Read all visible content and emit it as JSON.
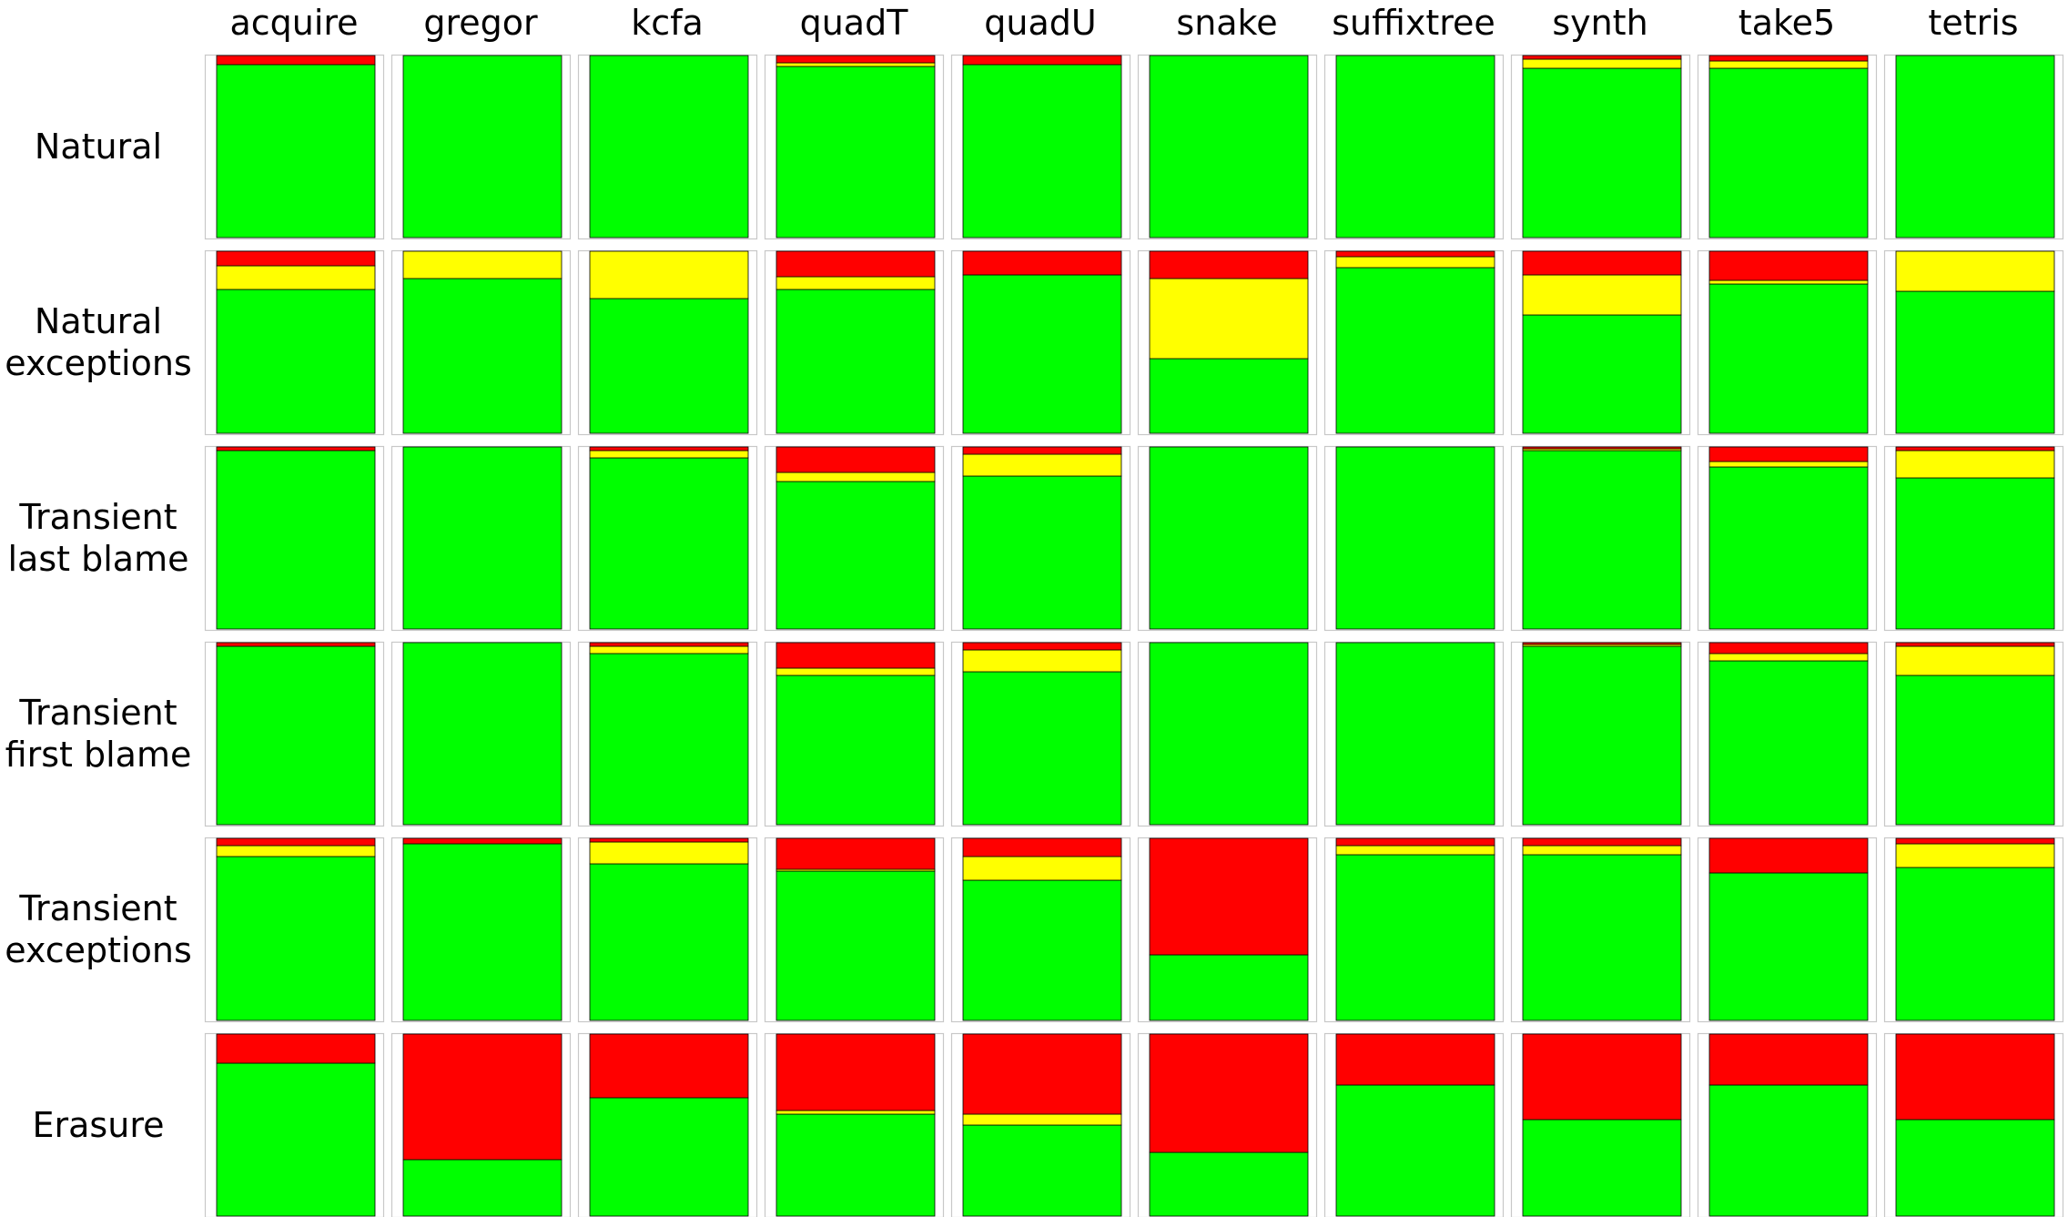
{
  "chart_data": {
    "type": "bar",
    "stacked": true,
    "normalized": true,
    "colors": {
      "green": "#00ff00",
      "yellow": "#ffff00",
      "red": "#ff0000"
    },
    "stack_order_bottom_to_top": [
      "green",
      "yellow",
      "red"
    ],
    "columns": [
      "acquire",
      "gregor",
      "kcfa",
      "quadT",
      "quadU",
      "snake",
      "suffixtree",
      "synth",
      "take5",
      "tetris"
    ],
    "rows": [
      {
        "label": [
          "Natural"
        ],
        "cells": [
          {
            "green": 0.95,
            "yellow": 0.0,
            "red": 0.05
          },
          {
            "green": 1.0,
            "yellow": 0.0,
            "red": 0.0
          },
          {
            "green": 1.0,
            "yellow": 0.0,
            "red": 0.0
          },
          {
            "green": 0.94,
            "yellow": 0.02,
            "red": 0.04
          },
          {
            "green": 0.95,
            "yellow": 0.0,
            "red": 0.05
          },
          {
            "green": 1.0,
            "yellow": 0.0,
            "red": 0.0
          },
          {
            "green": 1.0,
            "yellow": 0.0,
            "red": 0.0
          },
          {
            "green": 0.93,
            "yellow": 0.05,
            "red": 0.02
          },
          {
            "green": 0.93,
            "yellow": 0.04,
            "red": 0.03
          },
          {
            "green": 1.0,
            "yellow": 0.0,
            "red": 0.0
          }
        ]
      },
      {
        "label": [
          "Natural",
          "exceptions"
        ],
        "cells": [
          {
            "green": 0.79,
            "yellow": 0.13,
            "red": 0.08
          },
          {
            "green": 0.85,
            "yellow": 0.15,
            "red": 0.0
          },
          {
            "green": 0.74,
            "yellow": 0.26,
            "red": 0.0
          },
          {
            "green": 0.79,
            "yellow": 0.07,
            "red": 0.14
          },
          {
            "green": 0.87,
            "yellow": 0.0,
            "red": 0.13
          },
          {
            "green": 0.41,
            "yellow": 0.44,
            "red": 0.15
          },
          {
            "green": 0.91,
            "yellow": 0.06,
            "red": 0.03
          },
          {
            "green": 0.65,
            "yellow": 0.22,
            "red": 0.13
          },
          {
            "green": 0.82,
            "yellow": 0.02,
            "red": 0.16
          },
          {
            "green": 0.78,
            "yellow": 0.22,
            "red": 0.0
          }
        ]
      },
      {
        "label": [
          "Transient",
          "last blame"
        ],
        "cells": [
          {
            "green": 0.98,
            "yellow": 0.0,
            "red": 0.02
          },
          {
            "green": 1.0,
            "yellow": 0.0,
            "red": 0.0
          },
          {
            "green": 0.94,
            "yellow": 0.04,
            "red": 0.02
          },
          {
            "green": 0.81,
            "yellow": 0.05,
            "red": 0.14
          },
          {
            "green": 0.84,
            "yellow": 0.12,
            "red": 0.04
          },
          {
            "green": 1.0,
            "yellow": 0.0,
            "red": 0.0
          },
          {
            "green": 1.0,
            "yellow": 0.0,
            "red": 0.0
          },
          {
            "green": 0.98,
            "yellow": 0.01,
            "red": 0.01
          },
          {
            "green": 0.89,
            "yellow": 0.03,
            "red": 0.08
          },
          {
            "green": 0.83,
            "yellow": 0.15,
            "red": 0.02
          }
        ]
      },
      {
        "label": [
          "Transient",
          "first blame"
        ],
        "cells": [
          {
            "green": 0.98,
            "yellow": 0.0,
            "red": 0.02
          },
          {
            "green": 1.0,
            "yellow": 0.0,
            "red": 0.0
          },
          {
            "green": 0.94,
            "yellow": 0.04,
            "red": 0.02
          },
          {
            "green": 0.82,
            "yellow": 0.04,
            "red": 0.14
          },
          {
            "green": 0.84,
            "yellow": 0.12,
            "red": 0.04
          },
          {
            "green": 1.0,
            "yellow": 0.0,
            "red": 0.0
          },
          {
            "green": 1.0,
            "yellow": 0.0,
            "red": 0.0
          },
          {
            "green": 0.98,
            "yellow": 0.01,
            "red": 0.01
          },
          {
            "green": 0.9,
            "yellow": 0.04,
            "red": 0.06
          },
          {
            "green": 0.82,
            "yellow": 0.16,
            "red": 0.02
          }
        ]
      },
      {
        "label": [
          "Transient",
          "exceptions"
        ],
        "cells": [
          {
            "green": 0.9,
            "yellow": 0.06,
            "red": 0.04
          },
          {
            "green": 0.97,
            "yellow": 0.0,
            "red": 0.03
          },
          {
            "green": 0.86,
            "yellow": 0.12,
            "red": 0.02
          },
          {
            "green": 0.82,
            "yellow": 0.01,
            "red": 0.17
          },
          {
            "green": 0.77,
            "yellow": 0.13,
            "red": 0.1
          },
          {
            "green": 0.36,
            "yellow": 0.0,
            "red": 0.64
          },
          {
            "green": 0.91,
            "yellow": 0.05,
            "red": 0.04
          },
          {
            "green": 0.91,
            "yellow": 0.05,
            "red": 0.04
          },
          {
            "green": 0.81,
            "yellow": 0.0,
            "red": 0.19
          },
          {
            "green": 0.84,
            "yellow": 0.13,
            "red": 0.03
          }
        ]
      },
      {
        "label": [
          "Erasure"
        ],
        "cells": [
          {
            "green": 0.84,
            "yellow": 0.0,
            "red": 0.16
          },
          {
            "green": 0.31,
            "yellow": 0.0,
            "red": 0.69
          },
          {
            "green": 0.65,
            "yellow": 0.0,
            "red": 0.35
          },
          {
            "green": 0.56,
            "yellow": 0.02,
            "red": 0.42
          },
          {
            "green": 0.5,
            "yellow": 0.06,
            "red": 0.44
          },
          {
            "green": 0.35,
            "yellow": 0.0,
            "red": 0.65
          },
          {
            "green": 0.72,
            "yellow": 0.0,
            "red": 0.28
          },
          {
            "green": 0.53,
            "yellow": 0.0,
            "red": 0.47
          },
          {
            "green": 0.72,
            "yellow": 0.0,
            "red": 0.28
          },
          {
            "green": 0.53,
            "yellow": 0.0,
            "red": 0.47
          }
        ]
      }
    ]
  }
}
